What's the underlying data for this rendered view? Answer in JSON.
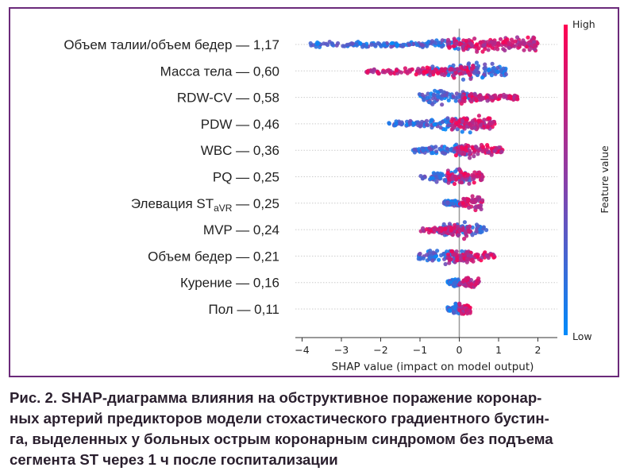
{
  "chart_data": {
    "type": "scatter",
    "subtype": "shap-beeswarm",
    "xlabel": "SHAP value (impact on model output)",
    "xlim": [
      -4.1,
      2.2
    ],
    "xticks": [
      "−4",
      "−3",
      "−2",
      "−1",
      "0",
      "1",
      "2"
    ],
    "xtick_values": [
      -4,
      -3,
      -2,
      -1,
      0,
      1,
      2
    ],
    "colorbar": {
      "title": "Feature value",
      "high_label": "High",
      "low_label": "Low",
      "high_color": "#ff0051",
      "low_color": "#008bfb"
    },
    "features": [
      {
        "label": "Объем талии/объем бедер — 1,17",
        "min": -3.8,
        "max": 2.0,
        "low_range": [
          -3.8,
          0.3
        ],
        "high_range": [
          -0.3,
          2.0
        ],
        "peak": 1.4
      },
      {
        "label": "Масса тела — 0,60",
        "min": -2.4,
        "max": 1.2,
        "low_range": [
          -1.0,
          1.2
        ],
        "high_range": [
          -2.4,
          0.4
        ],
        "peak": 0.3
      },
      {
        "label": "RDW-CV — 0,58",
        "min": -1.1,
        "max": 1.5,
        "low_range": [
          -1.1,
          0.4
        ],
        "high_range": [
          0.0,
          1.5
        ],
        "peak": -0.5
      },
      {
        "label": "PDW — 0,46",
        "min": -1.8,
        "max": 0.9,
        "low_range": [
          -1.8,
          0.3
        ],
        "high_range": [
          -0.2,
          0.9
        ],
        "peak": 0.3
      },
      {
        "label": "WBC — 0,36",
        "min": -1.2,
        "max": 1.1,
        "low_range": [
          -1.2,
          0.2
        ],
        "high_range": [
          -0.1,
          1.1
        ],
        "peak": 0.2
      },
      {
        "label": "PQ — 0,25",
        "min": -1.0,
        "max": 0.6,
        "low_range": [
          -1.0,
          0.3
        ],
        "high_range": [
          -0.3,
          0.6
        ],
        "peak": 0.0
      },
      {
        "label": "Элевация ST",
        "label_sub": "aVR",
        "label_tail": " — 0,25",
        "min": -0.4,
        "max": 0.6,
        "low_range": [
          -0.4,
          0.0
        ],
        "high_range": [
          0.0,
          0.6
        ],
        "peak": 0.3
      },
      {
        "label": "MVP — 0,24",
        "min": -1.0,
        "max": 0.7,
        "low_range": [
          -0.6,
          0.7
        ],
        "high_range": [
          -1.0,
          0.3
        ],
        "peak": 0.0
      },
      {
        "label": "Объем бедер — 0,21",
        "min": -1.1,
        "max": 0.9,
        "low_range": [
          -1.1,
          0.3
        ],
        "high_range": [
          -0.3,
          0.9
        ],
        "peak": -0.2
      },
      {
        "label": "Курение — 0,16",
        "min": -0.3,
        "max": 0.5,
        "low_range": [
          -0.3,
          0.0
        ],
        "high_range": [
          0.0,
          0.5
        ],
        "peak": 0.2
      },
      {
        "label": "Пол — 0,11",
        "min": -0.3,
        "max": 0.3,
        "low_range": [
          -0.3,
          0.0
        ],
        "high_range": [
          0.0,
          0.3
        ],
        "peak": 0.1
      }
    ]
  },
  "caption": {
    "lines": [
      "Рис. 2. SHAP-диаграмма влияния на обструктивное поражение коронар-",
      "ных артерий предикторов модели стохастического градиентного бустин-",
      "га, выделенных у больных острым коронарным синдромом без подъема",
      "сегмента ST через 1 ч после госпитализации"
    ]
  }
}
